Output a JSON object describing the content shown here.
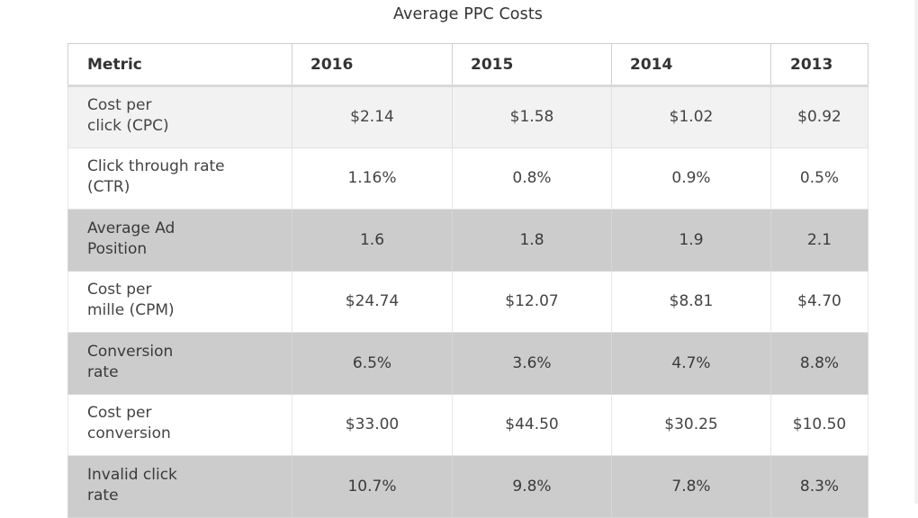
{
  "title": "Average PPC Costs",
  "table": {
    "columns": [
      "Metric",
      "2016",
      "2015",
      "2014",
      "2013"
    ],
    "rows": [
      {
        "metric_lines": [
          "Cost per",
          "click (CPC)"
        ],
        "values": [
          "$2.14",
          "$1.58",
          "$1.02",
          "$0.92"
        ],
        "shade": "light"
      },
      {
        "metric_lines": [
          "Click through rate",
          "(CTR)"
        ],
        "values": [
          "1.16%",
          "0.8%",
          "0.9%",
          "0.5%"
        ],
        "shade": "white"
      },
      {
        "metric_lines": [
          "Average Ad",
          "Position"
        ],
        "values": [
          "1.6",
          "1.8",
          "1.9",
          "2.1"
        ],
        "shade": "dark"
      },
      {
        "metric_lines": [
          "Cost per",
          "mille (CPM)"
        ],
        "values": [
          "$24.74",
          "$12.07",
          "$8.81",
          "$4.70"
        ],
        "shade": "white"
      },
      {
        "metric_lines": [
          "Conversion",
          "rate"
        ],
        "values": [
          "6.5%",
          "3.6%",
          "4.7%",
          "8.8%"
        ],
        "shade": "dark"
      },
      {
        "metric_lines": [
          "Cost per",
          "conversion"
        ],
        "values": [
          "$33.00",
          "$44.50",
          "$30.25",
          "$10.50"
        ],
        "shade": "white"
      },
      {
        "metric_lines": [
          "Invalid click",
          "rate"
        ],
        "values": [
          "10.7%",
          "9.8%",
          "7.8%",
          "8.3%"
        ],
        "shade": "dark"
      }
    ]
  },
  "colors": {
    "header_bg": "#ffffff",
    "row_light": "#f2f2f2",
    "row_white": "#ffffff",
    "row_dark": "#cccccc",
    "text": "#333333"
  }
}
